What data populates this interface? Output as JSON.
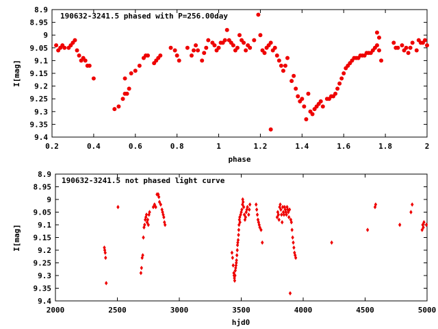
{
  "chart_data": [
    {
      "type": "scatter",
      "title": "190632-3241.5 phased with P=256.00day",
      "xlabel": "phase",
      "ylabel": "I[mag]",
      "xlim": [
        0.2,
        2.0
      ],
      "ylim": [
        9.4,
        8.9
      ],
      "y_inverted": true,
      "grid": false,
      "xticks": [
        "0.2",
        "0.4",
        "0.6",
        "0.8",
        "1",
        "1.2",
        "1.4",
        "1.6",
        "1.8",
        "2"
      ],
      "yticks": [
        "8.9",
        "8.95",
        "9",
        "9.05",
        "9.1",
        "9.15",
        "9.2",
        "9.25",
        "9.3",
        "9.35",
        "9.4"
      ],
      "marker": "filled-circle",
      "color": "#ee0000",
      "points": [
        [
          0.22,
          9.04
        ],
        [
          0.23,
          9.06
        ],
        [
          0.24,
          9.05
        ],
        [
          0.25,
          9.04
        ],
        [
          0.26,
          9.05
        ],
        [
          0.28,
          9.05
        ],
        [
          0.29,
          9.04
        ],
        [
          0.3,
          9.03
        ],
        [
          0.31,
          9.02
        ],
        [
          0.32,
          9.06
        ],
        [
          0.33,
          9.08
        ],
        [
          0.34,
          9.1
        ],
        [
          0.35,
          9.09
        ],
        [
          0.36,
          9.1
        ],
        [
          0.37,
          9.12
        ],
        [
          0.38,
          9.12
        ],
        [
          0.4,
          9.17
        ],
        [
          0.5,
          9.29
        ],
        [
          0.52,
          9.28
        ],
        [
          0.54,
          9.25
        ],
        [
          0.55,
          9.23
        ],
        [
          0.56,
          9.23
        ],
        [
          0.57,
          9.21
        ],
        [
          0.55,
          9.17
        ],
        [
          0.58,
          9.15
        ],
        [
          0.6,
          9.14
        ],
        [
          0.62,
          9.12
        ],
        [
          0.64,
          9.09
        ],
        [
          0.65,
          9.08
        ],
        [
          0.66,
          9.08
        ],
        [
          0.69,
          9.11
        ],
        [
          0.7,
          9.1
        ],
        [
          0.71,
          9.09
        ],
        [
          0.72,
          9.08
        ],
        [
          0.77,
          9.05
        ],
        [
          0.79,
          9.06
        ],
        [
          0.8,
          9.08
        ],
        [
          0.81,
          9.1
        ],
        [
          0.85,
          9.05
        ],
        [
          0.87,
          9.08
        ],
        [
          0.88,
          9.06
        ],
        [
          0.89,
          9.04
        ],
        [
          0.9,
          9.06
        ],
        [
          0.92,
          9.1
        ],
        [
          0.93,
          9.07
        ],
        [
          0.94,
          9.05
        ],
        [
          0.95,
          9.02
        ],
        [
          0.97,
          9.03
        ],
        [
          0.98,
          9.04
        ],
        [
          0.99,
          9.06
        ],
        [
          1.0,
          9.05
        ],
        [
          1.01,
          9.03
        ],
        [
          1.02,
          9.03
        ],
        [
          1.03,
          9.02
        ],
        [
          1.04,
          8.98
        ],
        [
          1.05,
          9.02
        ],
        [
          1.06,
          9.03
        ],
        [
          1.07,
          9.04
        ],
        [
          1.08,
          9.06
        ],
        [
          1.09,
          9.05
        ],
        [
          1.1,
          9.0
        ],
        [
          1.11,
          9.02
        ],
        [
          1.12,
          9.03
        ],
        [
          1.13,
          9.06
        ],
        [
          1.14,
          9.04
        ],
        [
          1.15,
          9.05
        ],
        [
          1.17,
          9.02
        ],
        [
          1.19,
          8.92
        ],
        [
          1.2,
          9.0
        ],
        [
          1.21,
          9.06
        ],
        [
          1.22,
          9.07
        ],
        [
          1.23,
          9.05
        ],
        [
          1.24,
          9.04
        ],
        [
          1.25,
          9.03
        ],
        [
          1.26,
          9.06
        ],
        [
          1.27,
          9.05
        ],
        [
          1.28,
          9.08
        ],
        [
          1.29,
          9.1
        ],
        [
          1.3,
          9.12
        ],
        [
          1.31,
          9.14
        ],
        [
          1.32,
          9.12
        ],
        [
          1.33,
          9.09
        ],
        [
          1.25,
          9.37
        ],
        [
          1.35,
          9.18
        ],
        [
          1.36,
          9.16
        ],
        [
          1.37,
          9.21
        ],
        [
          1.38,
          9.24
        ],
        [
          1.39,
          9.26
        ],
        [
          1.4,
          9.25
        ],
        [
          1.41,
          9.28
        ],
        [
          1.42,
          9.33
        ],
        [
          1.43,
          9.23
        ],
        [
          1.44,
          9.3
        ],
        [
          1.45,
          9.31
        ],
        [
          1.46,
          9.29
        ],
        [
          1.47,
          9.28
        ],
        [
          1.48,
          9.27
        ],
        [
          1.49,
          9.26
        ],
        [
          1.5,
          9.28
        ],
        [
          1.52,
          9.25
        ],
        [
          1.53,
          9.25
        ],
        [
          1.54,
          9.24
        ],
        [
          1.55,
          9.24
        ],
        [
          1.56,
          9.23
        ],
        [
          1.57,
          9.21
        ],
        [
          1.58,
          9.19
        ],
        [
          1.59,
          9.17
        ],
        [
          1.6,
          9.15
        ],
        [
          1.61,
          9.13
        ],
        [
          1.62,
          9.12
        ],
        [
          1.63,
          9.11
        ],
        [
          1.64,
          9.1
        ],
        [
          1.65,
          9.09
        ],
        [
          1.66,
          9.09
        ],
        [
          1.67,
          9.09
        ],
        [
          1.68,
          9.08
        ],
        [
          1.69,
          9.08
        ],
        [
          1.7,
          9.08
        ],
        [
          1.71,
          9.07
        ],
        [
          1.72,
          9.07
        ],
        [
          1.73,
          9.07
        ],
        [
          1.74,
          9.06
        ],
        [
          1.75,
          9.05
        ],
        [
          1.76,
          9.04
        ],
        [
          1.77,
          9.06
        ],
        [
          1.78,
          9.1
        ],
        [
          1.76,
          8.99
        ],
        [
          1.77,
          9.01
        ],
        [
          1.84,
          9.03
        ],
        [
          1.85,
          9.05
        ],
        [
          1.86,
          9.05
        ],
        [
          1.88,
          9.04
        ],
        [
          1.89,
          9.06
        ],
        [
          1.9,
          9.05
        ],
        [
          1.91,
          9.07
        ],
        [
          1.92,
          9.05
        ],
        [
          1.93,
          9.03
        ],
        [
          1.95,
          9.06
        ],
        [
          1.96,
          9.02
        ],
        [
          1.97,
          9.03
        ],
        [
          1.98,
          9.03
        ],
        [
          1.99,
          9.02
        ],
        [
          2.0,
          9.04
        ]
      ]
    },
    {
      "type": "scatter",
      "title": "190632-3241.5 not phased light curve",
      "xlabel": "hjd0",
      "ylabel": "I[mag]",
      "xlim": [
        2000,
        5000
      ],
      "ylim": [
        9.4,
        8.9
      ],
      "y_inverted": true,
      "grid": false,
      "xticks": [
        "2000",
        "2500",
        "3000",
        "3500",
        "4000",
        "4500",
        "5000"
      ],
      "yticks": [
        "8.9",
        "8.95",
        "9",
        "9.05",
        "9.1",
        "9.15",
        "9.2",
        "9.25",
        "9.3",
        "9.35",
        "9.4"
      ],
      "marker": "filled-diamond",
      "color": "#ee0000",
      "points": [
        [
          2395,
          9.19
        ],
        [
          2398,
          9.2
        ],
        [
          2402,
          9.21
        ],
        [
          2405,
          9.23
        ],
        [
          2410,
          9.33
        ],
        [
          2505,
          9.03
        ],
        [
          2690,
          9.29
        ],
        [
          2695,
          9.27
        ],
        [
          2700,
          9.23
        ],
        [
          2705,
          9.22
        ],
        [
          2710,
          9.15
        ],
        [
          2715,
          9.11
        ],
        [
          2720,
          9.1
        ],
        [
          2725,
          9.08
        ],
        [
          2730,
          9.07
        ],
        [
          2735,
          9.06
        ],
        [
          2740,
          9.09
        ],
        [
          2745,
          9.08
        ],
        [
          2750,
          9.1
        ],
        [
          2755,
          9.06
        ],
        [
          2760,
          9.05
        ],
        [
          2790,
          9.03
        ],
        [
          2800,
          9.02
        ],
        [
          2810,
          9.03
        ],
        [
          2820,
          8.98
        ],
        [
          2830,
          8.98
        ],
        [
          2835,
          8.99
        ],
        [
          2840,
          9.01
        ],
        [
          2850,
          9.02
        ],
        [
          2860,
          9.04
        ],
        [
          2865,
          9.05
        ],
        [
          2870,
          9.06
        ],
        [
          2875,
          9.07
        ],
        [
          2880,
          9.09
        ],
        [
          2885,
          9.1
        ],
        [
          3425,
          9.21
        ],
        [
          3430,
          9.23
        ],
        [
          3435,
          9.26
        ],
        [
          3440,
          9.29
        ],
        [
          3442,
          9.3
        ],
        [
          3445,
          9.31
        ],
        [
          3447,
          9.32
        ],
        [
          3450,
          9.3
        ],
        [
          3452,
          9.28
        ],
        [
          3455,
          9.27
        ],
        [
          3458,
          9.26
        ],
        [
          3460,
          9.25
        ],
        [
          3462,
          9.24
        ],
        [
          3465,
          9.22
        ],
        [
          3468,
          9.2
        ],
        [
          3470,
          9.18
        ],
        [
          3472,
          9.17
        ],
        [
          3475,
          9.16
        ],
        [
          3478,
          9.14
        ],
        [
          3480,
          9.12
        ],
        [
          3482,
          9.1
        ],
        [
          3485,
          9.08
        ],
        [
          3488,
          9.07
        ],
        [
          3490,
          9.09
        ],
        [
          3495,
          9.06
        ],
        [
          3500,
          9.05
        ],
        [
          3505,
          9.04
        ],
        [
          3510,
          9.02
        ],
        [
          3512,
          9.0
        ],
        [
          3515,
          9.01
        ],
        [
          3520,
          9.03
        ],
        [
          3525,
          9.06
        ],
        [
          3530,
          9.08
        ],
        [
          3535,
          9.07
        ],
        [
          3540,
          9.05
        ],
        [
          3545,
          9.04
        ],
        [
          3550,
          9.03
        ],
        [
          3560,
          9.06
        ],
        [
          3565,
          9.04
        ],
        [
          3570,
          9.02
        ],
        [
          3620,
          9.02
        ],
        [
          3625,
          9.04
        ],
        [
          3630,
          9.06
        ],
        [
          3635,
          9.08
        ],
        [
          3640,
          9.09
        ],
        [
          3645,
          9.1
        ],
        [
          3650,
          9.11
        ],
        [
          3660,
          9.12
        ],
        [
          3670,
          9.17
        ],
        [
          3790,
          9.07
        ],
        [
          3795,
          9.05
        ],
        [
          3800,
          9.06
        ],
        [
          3805,
          9.08
        ],
        [
          3810,
          9.03
        ],
        [
          3815,
          9.02
        ],
        [
          3820,
          9.04
        ],
        [
          3825,
          9.06
        ],
        [
          3830,
          9.09
        ],
        [
          3835,
          9.03
        ],
        [
          3840,
          9.05
        ],
        [
          3845,
          9.06
        ],
        [
          3850,
          9.03
        ],
        [
          3855,
          9.04
        ],
        [
          3860,
          9.05
        ],
        [
          3865,
          9.06
        ],
        [
          3870,
          9.03
        ],
        [
          3875,
          9.04
        ],
        [
          3880,
          9.05
        ],
        [
          3885,
          9.07
        ],
        [
          3890,
          9.04
        ],
        [
          3895,
          9.37
        ],
        [
          3900,
          9.08
        ],
        [
          3905,
          9.09
        ],
        [
          3910,
          9.12
        ],
        [
          3915,
          9.15
        ],
        [
          3920,
          9.17
        ],
        [
          3925,
          9.19
        ],
        [
          3930,
          9.21
        ],
        [
          3935,
          9.22
        ],
        [
          3940,
          9.23
        ],
        [
          4230,
          9.17
        ],
        [
          4520,
          9.12
        ],
        [
          4580,
          9.03
        ],
        [
          4585,
          9.02
        ],
        [
          4780,
          9.1
        ],
        [
          4870,
          9.05
        ],
        [
          4880,
          9.02
        ],
        [
          4960,
          9.12
        ],
        [
          4965,
          9.1
        ],
        [
          4970,
          9.11
        ],
        [
          4975,
          9.09
        ],
        [
          4995,
          9.1
        ]
      ]
    }
  ]
}
